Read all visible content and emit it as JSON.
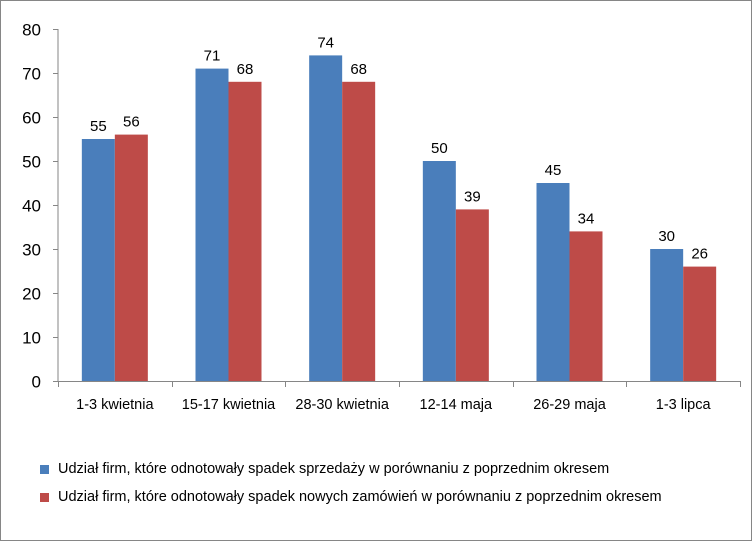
{
  "chart_data": {
    "type": "bar",
    "categories": [
      "1-3 kwietnia",
      "15-17 kwietnia",
      "28-30 kwietnia",
      "12-14 maja",
      "26-29 maja",
      "1-3 lipca"
    ],
    "series": [
      {
        "name": "Udział firm, które odnotowały spadek sprzedaży w porównaniu z poprzednim okresem",
        "color": "#4a7ebb",
        "values": [
          55,
          71,
          74,
          50,
          45,
          30
        ]
      },
      {
        "name": "Udział firm, które odnotowały spadek nowych zamówień w porównaniu z poprzednim okresem",
        "color": "#be4b48",
        "values": [
          56,
          68,
          68,
          39,
          34,
          26
        ]
      }
    ],
    "ylim": [
      0,
      80
    ],
    "yticks": [
      0,
      10,
      20,
      30,
      40,
      50,
      60,
      70,
      80
    ],
    "title": "",
    "xlabel": "",
    "ylabel": "",
    "grid": false,
    "legend_position": "bottom"
  }
}
